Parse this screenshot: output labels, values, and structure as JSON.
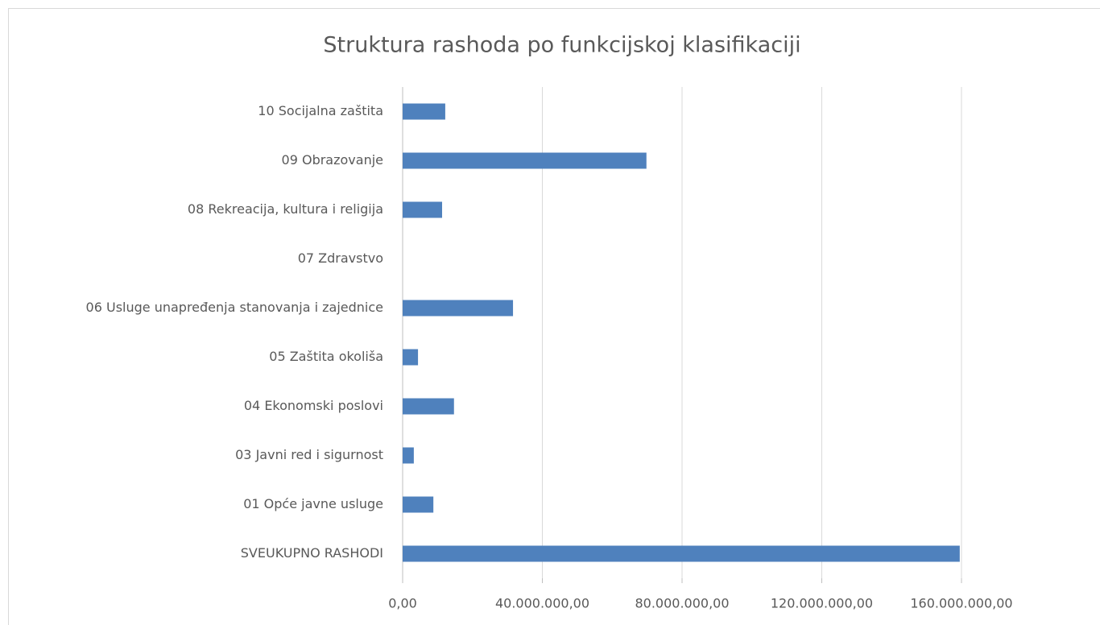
{
  "chart_data": {
    "type": "hbar",
    "title": "Struktura rashoda po funkcijskoj klasifikaciji",
    "categories": [
      "10 Socijalna zaštita",
      "09 Obrazovanje",
      "08 Rekreacija, kultura i religija",
      "07 Zdravstvo",
      "06 Usluge unapređenja stanovanja i zajednice",
      "05 Zaštita okoliša",
      "04 Ekonomski poslovi",
      "03 Javni red i sigurnost",
      "01 Opće javne usluge",
      "SVEUKUPNO RASHODI"
    ],
    "values": [
      12200000,
      69800000,
      11300000,
      0,
      31600000,
      4400000,
      14700000,
      3200000,
      8800000,
      159500000
    ],
    "color": "#4f81bd",
    "xlim": [
      0,
      160000000
    ],
    "xticks": [
      {
        "value": 0,
        "label": "0,00"
      },
      {
        "value": 40000000,
        "label": "40.000.000,00"
      },
      {
        "value": 80000000,
        "label": "80.000.000,00"
      },
      {
        "value": 120000000,
        "label": "120.000.000,00"
      },
      {
        "value": 160000000,
        "label": "160.000.000,00"
      }
    ],
    "grid": true
  }
}
